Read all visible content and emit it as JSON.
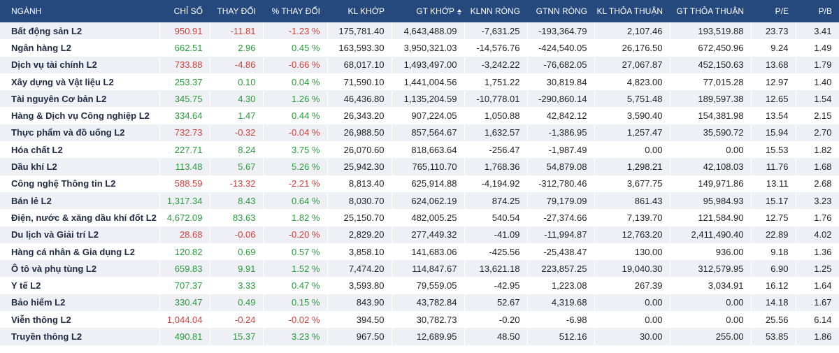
{
  "headers": {
    "nganh": "NGÀNH",
    "chi_so": "CHỈ SỐ",
    "thay_doi": "THAY ĐỔI",
    "pct_thay_doi": "% THAY ĐỔI",
    "kl_khop": "KL KHỚP",
    "gt_khop": "GT KHỚP",
    "klnn_rong": "KLNN RÒNG",
    "gtnn_rong": "GTNN RÒNG",
    "kl_thoa_thuan": "KL THỎA THUẬN",
    "gt_thoa_thuan": "GT THỎA THUẬN",
    "pe": "P/E",
    "pb": "P/B"
  },
  "sorted_column_icon": "sort-arrows-icon",
  "colors": {
    "header_bg": "#26497d",
    "up": "#2a9a3c",
    "down": "#d0403b",
    "row_alt": "#eef0f5"
  },
  "rows": [
    {
      "name": "Bất động sản L2",
      "chi_so": "950.91",
      "thay_doi": "-11.81",
      "pct": "-1.23 %",
      "kl_khop": "175,781.40",
      "gt_khop": "4,643,488.09",
      "klnn": "-7,631.25",
      "gtnn": "-193,364.79",
      "kl_tt": "2,107.46",
      "gt_tt": "193,519.88",
      "pe": "23.73",
      "pb": "3.41",
      "trend": "down"
    },
    {
      "name": "Ngân hàng L2",
      "chi_so": "662.51",
      "thay_doi": "2.96",
      "pct": "0.45 %",
      "kl_khop": "163,593.30",
      "gt_khop": "3,950,321.03",
      "klnn": "-14,576.76",
      "gtnn": "-424,540.05",
      "kl_tt": "26,176.50",
      "gt_tt": "672,450.96",
      "pe": "9.24",
      "pb": "1.49",
      "trend": "up"
    },
    {
      "name": "Dịch vụ tài chính L2",
      "chi_so": "733.88",
      "thay_doi": "-4.86",
      "pct": "-0.66 %",
      "kl_khop": "68,017.10",
      "gt_khop": "1,493,497.00",
      "klnn": "-3,242.22",
      "gtnn": "-76,682.05",
      "kl_tt": "27,067.87",
      "gt_tt": "452,150.63",
      "pe": "13.68",
      "pb": "1.79",
      "trend": "down"
    },
    {
      "name": "Xây dựng và Vật liệu L2",
      "chi_so": "253.37",
      "thay_doi": "0.10",
      "pct": "0.04 %",
      "kl_khop": "71,590.10",
      "gt_khop": "1,441,004.56",
      "klnn": "1,751.22",
      "gtnn": "30,819.84",
      "kl_tt": "4,823.00",
      "gt_tt": "77,015.28",
      "pe": "12.97",
      "pb": "1.40",
      "trend": "up"
    },
    {
      "name": "Tài nguyên Cơ bản L2",
      "chi_so": "345.75",
      "thay_doi": "4.30",
      "pct": "1.26 %",
      "kl_khop": "46,436.80",
      "gt_khop": "1,135,204.59",
      "klnn": "-10,778.01",
      "gtnn": "-290,860.14",
      "kl_tt": "5,751.48",
      "gt_tt": "189,597.38",
      "pe": "12.65",
      "pb": "1.54",
      "trend": "up"
    },
    {
      "name": "Hàng & Dịch vụ Công nghiệp L2",
      "chi_so": "334.64",
      "thay_doi": "1.47",
      "pct": "0.44 %",
      "kl_khop": "26,343.20",
      "gt_khop": "907,224.05",
      "klnn": "1,050.88",
      "gtnn": "42,842.12",
      "kl_tt": "3,590.40",
      "gt_tt": "154,381.98",
      "pe": "13.54",
      "pb": "2.15",
      "trend": "up"
    },
    {
      "name": "Thực phẩm và đồ uống L2",
      "chi_so": "732.73",
      "thay_doi": "-0.32",
      "pct": "-0.04 %",
      "kl_khop": "26,988.50",
      "gt_khop": "857,564.67",
      "klnn": "1,632.57",
      "gtnn": "-1,386.95",
      "kl_tt": "1,257.47",
      "gt_tt": "35,590.72",
      "pe": "15.94",
      "pb": "2.70",
      "trend": "down"
    },
    {
      "name": "Hóa chất L2",
      "chi_so": "227.71",
      "thay_doi": "8.24",
      "pct": "3.75 %",
      "kl_khop": "26,070.60",
      "gt_khop": "818,663.64",
      "klnn": "-256.47",
      "gtnn": "-1,987.49",
      "kl_tt": "0.00",
      "gt_tt": "0.00",
      "pe": "15.53",
      "pb": "1.82",
      "trend": "up"
    },
    {
      "name": "Dầu khí L2",
      "chi_so": "113.48",
      "thay_doi": "5.67",
      "pct": "5.26 %",
      "kl_khop": "25,942.30",
      "gt_khop": "765,110.70",
      "klnn": "1,768.36",
      "gtnn": "54,879.08",
      "kl_tt": "1,298.21",
      "gt_tt": "42,108.03",
      "pe": "11.76",
      "pb": "1.68",
      "trend": "up"
    },
    {
      "name": "Công nghệ Thông tin L2",
      "chi_so": "588.59",
      "thay_doi": "-13.32",
      "pct": "-2.21 %",
      "kl_khop": "8,813.40",
      "gt_khop": "625,914.88",
      "klnn": "-4,194.92",
      "gtnn": "-312,780.46",
      "kl_tt": "3,677.75",
      "gt_tt": "149,971.86",
      "pe": "13.11",
      "pb": "2.68",
      "trend": "down"
    },
    {
      "name": "Bán lẻ L2",
      "chi_so": "1,317.34",
      "thay_doi": "8.43",
      "pct": "0.64 %",
      "kl_khop": "8,030.70",
      "gt_khop": "624,062.19",
      "klnn": "874.25",
      "gtnn": "79,179.09",
      "kl_tt": "861.43",
      "gt_tt": "95,984.93",
      "pe": "15.17",
      "pb": "3.23",
      "trend": "up"
    },
    {
      "name": "Điện, nước & xăng dầu khí đốt L2",
      "chi_so": "4,672.09",
      "thay_doi": "83.63",
      "pct": "1.82 %",
      "kl_khop": "25,150.70",
      "gt_khop": "482,005.25",
      "klnn": "540.54",
      "gtnn": "-27,374.66",
      "kl_tt": "7,139.70",
      "gt_tt": "121,584.90",
      "pe": "12.75",
      "pb": "1.76",
      "trend": "up"
    },
    {
      "name": "Du lịch và Giải trí L2",
      "chi_so": "28.68",
      "thay_doi": "-0.06",
      "pct": "-0.20 %",
      "kl_khop": "2,829.20",
      "gt_khop": "277,449.32",
      "klnn": "-41.09",
      "gtnn": "-11,994.87",
      "kl_tt": "12,763.20",
      "gt_tt": "2,411,490.40",
      "pe": "22.89",
      "pb": "4.02",
      "trend": "down"
    },
    {
      "name": "Hàng cá nhân & Gia dụng L2",
      "chi_so": "120.82",
      "thay_doi": "0.69",
      "pct": "0.57 %",
      "kl_khop": "3,858.10",
      "gt_khop": "141,683.06",
      "klnn": "-425.56",
      "gtnn": "-25,438.47",
      "kl_tt": "130.00",
      "gt_tt": "936.00",
      "pe": "9.18",
      "pb": "1.36",
      "trend": "up"
    },
    {
      "name": "Ô tô và phụ tùng L2",
      "chi_so": "659.83",
      "thay_doi": "9.91",
      "pct": "1.52 %",
      "kl_khop": "7,474.20",
      "gt_khop": "114,847.67",
      "klnn": "13,621.18",
      "gtnn": "223,857.25",
      "kl_tt": "19,040.30",
      "gt_tt": "312,579.95",
      "pe": "6.90",
      "pb": "1.25",
      "trend": "up"
    },
    {
      "name": "Y tế L2",
      "chi_so": "707.37",
      "thay_doi": "3.33",
      "pct": "0.47 %",
      "kl_khop": "3,593.80",
      "gt_khop": "79,559.05",
      "klnn": "-42.95",
      "gtnn": "1,223.08",
      "kl_tt": "267.39",
      "gt_tt": "3,034.91",
      "pe": "16.12",
      "pb": "1.64",
      "trend": "up"
    },
    {
      "name": "Bảo hiểm L2",
      "chi_so": "330.47",
      "thay_doi": "0.49",
      "pct": "0.15 %",
      "kl_khop": "843.90",
      "gt_khop": "43,782.84",
      "klnn": "52.67",
      "gtnn": "4,319.68",
      "kl_tt": "0.00",
      "gt_tt": "0.00",
      "pe": "14.18",
      "pb": "1.67",
      "trend": "up"
    },
    {
      "name": "Viễn thông L2",
      "chi_so": "1,044.04",
      "thay_doi": "-0.24",
      "pct": "-0.02 %",
      "kl_khop": "394.50",
      "gt_khop": "30,782.73",
      "klnn": "-0.20",
      "gtnn": "-6.98",
      "kl_tt": "0.00",
      "gt_tt": "0.00",
      "pe": "25.56",
      "pb": "6.14",
      "trend": "down"
    },
    {
      "name": "Truyền thông L2",
      "chi_so": "490.81",
      "thay_doi": "15.37",
      "pct": "3.23 %",
      "kl_khop": "967.50",
      "gt_khop": "12,689.95",
      "klnn": "48.50",
      "gtnn": "512.16",
      "kl_tt": "30.00",
      "gt_tt": "255.00",
      "pe": "53.85",
      "pb": "1.86",
      "trend": "up"
    }
  ]
}
